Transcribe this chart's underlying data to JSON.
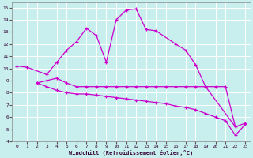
{
  "background_color": "#c8eeee",
  "grid_color": "#aadddd",
  "line_color": "#cc00cc",
  "xlabel": "Windchill (Refroidissement éolien,°C)",
  "xlim": [
    -0.5,
    23.5
  ],
  "ylim": [
    4,
    15.4
  ],
  "yticks": [
    4,
    5,
    6,
    7,
    8,
    9,
    10,
    11,
    12,
    13,
    14,
    15
  ],
  "xticks": [
    0,
    1,
    2,
    3,
    4,
    5,
    6,
    7,
    8,
    9,
    10,
    11,
    12,
    13,
    14,
    15,
    16,
    17,
    18,
    19,
    20,
    21,
    22,
    23
  ],
  "line1_x": [
    0,
    1,
    3,
    4,
    5,
    6,
    7,
    8,
    9,
    10,
    11,
    12,
    13,
    14,
    16,
    17,
    18,
    19,
    22
  ],
  "line1_y": [
    10.2,
    10.1,
    9.5,
    10.5,
    11.5,
    12.2,
    13.3,
    12.7,
    10.5,
    14.0,
    14.8,
    14.9,
    13.2,
    13.1,
    12.0,
    11.5,
    10.3,
    8.5,
    5.2
  ],
  "line2_x": [
    2,
    3,
    4,
    5,
    6,
    7,
    8,
    9,
    10,
    11,
    12,
    13,
    14,
    15,
    16,
    17,
    18,
    19,
    20,
    21,
    22,
    23
  ],
  "line2_y": [
    8.8,
    9.0,
    9.2,
    8.8,
    8.5,
    8.5,
    8.5,
    8.5,
    8.5,
    8.5,
    8.5,
    8.5,
    8.5,
    8.5,
    8.5,
    8.5,
    8.5,
    8.5,
    8.5,
    8.5,
    5.2,
    5.5
  ],
  "line3_x": [
    2,
    3,
    4,
    5,
    6,
    7,
    8,
    9,
    10,
    11,
    12,
    13,
    14,
    15,
    16,
    17,
    18,
    19,
    20,
    21,
    22,
    23
  ],
  "line3_y": [
    8.8,
    8.5,
    8.2,
    8.0,
    7.9,
    7.9,
    7.8,
    7.7,
    7.6,
    7.5,
    7.4,
    7.3,
    7.2,
    7.1,
    6.9,
    6.8,
    6.6,
    6.3,
    6.0,
    5.7,
    4.5,
    5.4
  ]
}
